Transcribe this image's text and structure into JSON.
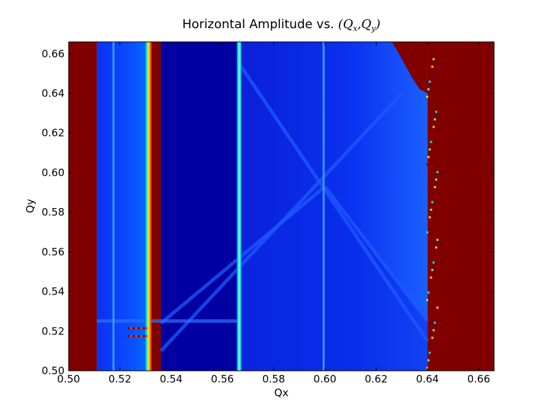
{
  "chart_data": {
    "type": "heatmap",
    "title_prefix": "Horizontal Amplitude vs. ",
    "title_math": "(Qx,Qy)",
    "xlabel": "Qx",
    "ylabel": "Qy",
    "xlim": [
      0.5,
      0.666
    ],
    "ylim": [
      0.5,
      0.666
    ],
    "x_ticks": [
      "0.50",
      "0.52",
      "0.54",
      "0.56",
      "0.58",
      "0.60",
      "0.62",
      "0.64",
      "0.66"
    ],
    "y_ticks": [
      "0.50",
      "0.52",
      "0.54",
      "0.56",
      "0.58",
      "0.60",
      "0.62",
      "0.64",
      "0.66"
    ],
    "colormap": "jet",
    "colors": {
      "saturated": "#800000",
      "background_low": "#0000a0",
      "field_mid": "#0a28e6",
      "field_bright": "#1e5aff"
    },
    "regions": [
      {
        "name": "lost-left",
        "x": [
          0.5,
          0.511
        ],
        "y": [
          0.5,
          0.666
        ],
        "level": "saturated"
      },
      {
        "name": "band-1",
        "x": [
          0.511,
          0.531
        ],
        "y": [
          0.5,
          0.666
        ],
        "level": "mid"
      },
      {
        "name": "lost-gap",
        "x": [
          0.532,
          0.536
        ],
        "y": [
          0.5,
          0.666
        ],
        "level": "saturated"
      },
      {
        "name": "band-2",
        "x": [
          0.536,
          0.567
        ],
        "y": [
          0.5,
          0.666
        ],
        "level": "low"
      },
      {
        "name": "band-3",
        "x": [
          0.567,
          0.64
        ],
        "y": [
          0.5,
          0.666
        ],
        "level": "mid"
      },
      {
        "name": "lost-right",
        "x": [
          0.64,
          0.666
        ],
        "y": [
          0.5,
          0.666
        ],
        "level": "saturated"
      }
    ],
    "resonance_lines": [
      {
        "x": 0.5175,
        "intensity": "light"
      },
      {
        "x": 0.531,
        "intensity": "peak"
      },
      {
        "x": 0.5665,
        "intensity": "peak"
      },
      {
        "x": 0.5995,
        "intensity": "light"
      }
    ],
    "diagonal_lines": [
      {
        "from": [
          0.536,
          0.51
        ],
        "to": [
          0.63,
          0.64
        ]
      },
      {
        "from": [
          0.566,
          0.656
        ],
        "to": [
          0.64,
          0.515
        ]
      },
      {
        "from": [
          0.536,
          0.524
        ],
        "to": [
          0.6,
          0.593
        ]
      },
      {
        "from": [
          0.6,
          0.593
        ],
        "to": [
          0.64,
          0.525
        ]
      }
    ]
  }
}
